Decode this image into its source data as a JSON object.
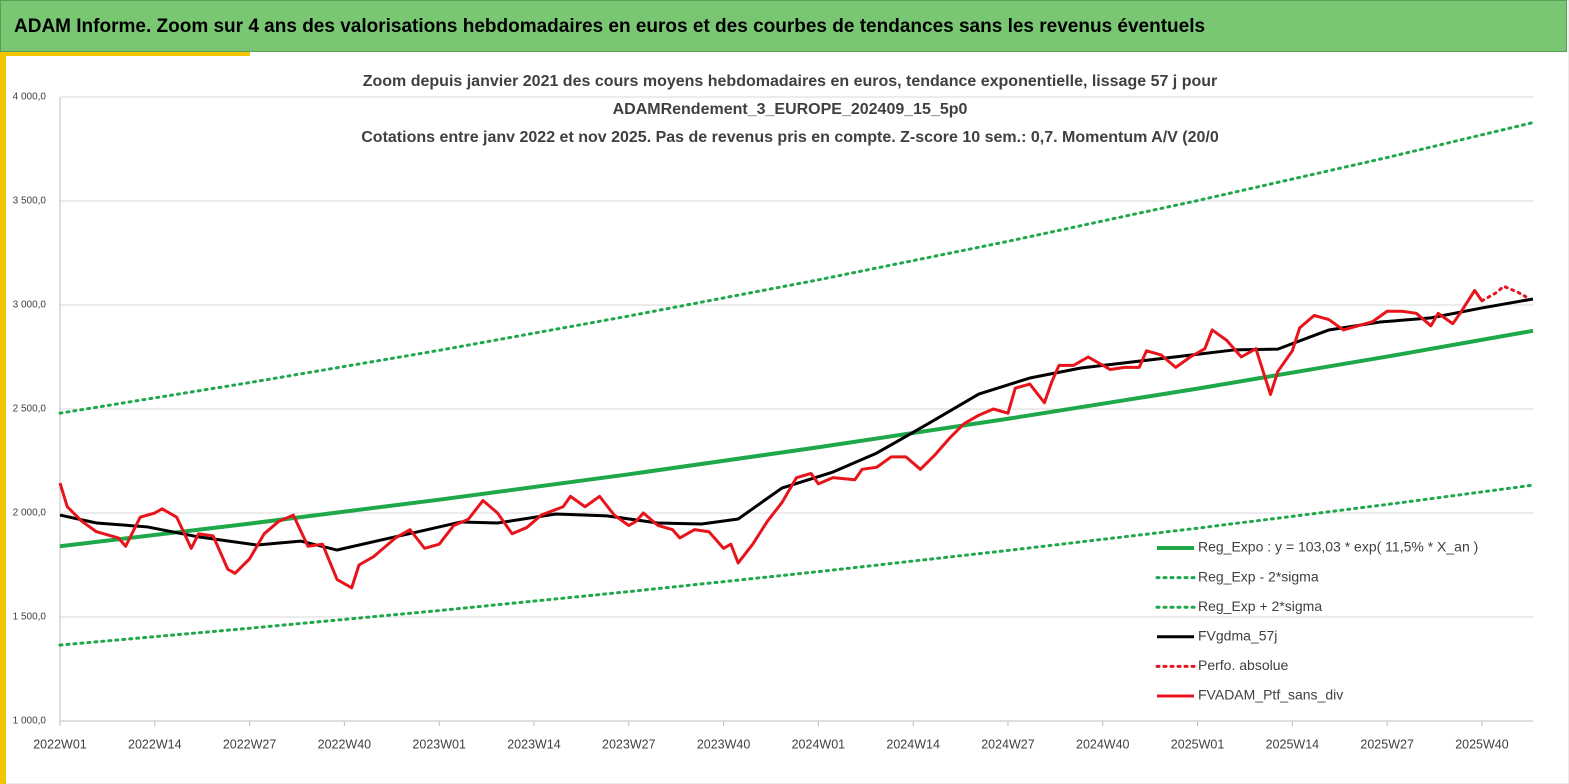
{
  "header": {
    "title": "ADAM Informe. Zoom sur 4 ans des valorisations hebdomadaires en euros et des courbes de tendances sans les revenus éventuels"
  },
  "chart_data": {
    "type": "line",
    "title": [
      "Zoom depuis janvier 2021 des cours moyens hebdomadaires  en euros, tendance exponentielle, lissage 57 j pour",
      "ADAMRendement_3_EUROPE_202409_15_5p0",
      "Cotations  entre janv 2022 et nov 2025. Pas de revenus pris en compte. Z-score 10 sem.: 0,7. Momentum A/V (20/0"
    ],
    "xlim": [
      0,
      202
    ],
    "xticks": [
      {
        "value": 0,
        "label": "2022W01"
      },
      {
        "value": 13,
        "label": "2022W14"
      },
      {
        "value": 26,
        "label": "2022W27"
      },
      {
        "value": 39,
        "label": "2022W40"
      },
      {
        "value": 52,
        "label": "2023W01"
      },
      {
        "value": 65,
        "label": "2023W14"
      },
      {
        "value": 78,
        "label": "2023W27"
      },
      {
        "value": 91,
        "label": "2023W40"
      },
      {
        "value": 104,
        "label": "2024W01"
      },
      {
        "value": 117,
        "label": "2024W14"
      },
      {
        "value": 130,
        "label": "2024W27"
      },
      {
        "value": 143,
        "label": "2024W40"
      },
      {
        "value": 156,
        "label": "2025W01"
      },
      {
        "value": 169,
        "label": "2025W14"
      },
      {
        "value": 182,
        "label": "2025W27"
      },
      {
        "value": 195,
        "label": "2025W40"
      }
    ],
    "ylim": [
      1000,
      4000
    ],
    "yticks": [
      {
        "value": 1000,
        "label": "1 000,0"
      },
      {
        "value": 1500,
        "label": "1 500,0"
      },
      {
        "value": 2000,
        "label": "2 000,0"
      },
      {
        "value": 2500,
        "label": "2 500,0"
      },
      {
        "value": 3000,
        "label": "3 000,0"
      },
      {
        "value": 3500,
        "label": "3 500,0"
      },
      {
        "value": 4000,
        "label": "4 000,0"
      }
    ],
    "grid": true,
    "legend": "lower right",
    "series": [
      {
        "name": "Reg_Expo : y = 103,03 * exp( 11,5% *  X_an )",
        "color": "#1ea84a",
        "style": "solid",
        "width": 4,
        "x": [
          0,
          26,
          52,
          78,
          104,
          130,
          156,
          182,
          202
        ],
        "values": [
          1840,
          1949,
          2064,
          2186,
          2316,
          2453,
          2598,
          2752,
          2876
        ]
      },
      {
        "name": "Reg_Exp - 2*sigma",
        "color": "#1ea84a",
        "style": "dotted",
        "width": 3,
        "x": [
          0,
          26,
          52,
          78,
          104,
          130,
          156,
          182,
          202
        ],
        "values": [
          1365,
          1446,
          1531,
          1622,
          1718,
          1820,
          1927,
          2041,
          2134
        ]
      },
      {
        "name": "Reg_Exp + 2*sigma",
        "color": "#1ea84a",
        "style": "dotted",
        "width": 3,
        "x": [
          0,
          26,
          52,
          78,
          104,
          130,
          156,
          182,
          202
        ],
        "values": [
          2480,
          2627,
          2782,
          2947,
          3121,
          3306,
          3502,
          3709,
          3877
        ]
      },
      {
        "name": "FVgdma_57j",
        "color": "#000000",
        "style": "solid",
        "width": 3,
        "x": [
          0,
          5,
          12,
          19,
          27,
          33,
          38,
          44,
          49,
          55,
          60,
          68,
          75,
          82,
          88,
          93,
          99,
          106,
          112,
          119,
          126,
          133,
          140,
          147,
          154,
          161,
          167,
          174,
          181,
          188,
          195,
          202
        ],
        "values": [
          1990,
          1952,
          1933,
          1885,
          1846,
          1865,
          1822,
          1870,
          1909,
          1957,
          1952,
          1995,
          1986,
          1952,
          1947,
          1971,
          2120,
          2197,
          2288,
          2428,
          2572,
          2649,
          2697,
          2726,
          2755,
          2784,
          2788,
          2880,
          2918,
          2938,
          2986,
          3029
        ]
      },
      {
        "name": "Perfo. absolue",
        "color": "#e8141b",
        "style": "dotted",
        "width": 3,
        "x": [
          195,
          197,
          198,
          200,
          201
        ],
        "values": [
          3020,
          3060,
          3090,
          3060,
          3040
        ]
      },
      {
        "name": "FVADAM_Ptf_sans_div",
        "color": "#e8141b",
        "style": "solid",
        "width": 3,
        "x": [
          0,
          1,
          3,
          5,
          8,
          9,
          11,
          13,
          14,
          16,
          18,
          19,
          21,
          23,
          24,
          26,
          28,
          30,
          32,
          34,
          36,
          38,
          40,
          41,
          43,
          46,
          48,
          50,
          52,
          54,
          56,
          58,
          60,
          62,
          64,
          66,
          69,
          70,
          72,
          74,
          76,
          78,
          79,
          80,
          82,
          84,
          85,
          87,
          89,
          91,
          92,
          93,
          95,
          97,
          99,
          101,
          103,
          104,
          106,
          109,
          110,
          112,
          114,
          116,
          118,
          120,
          122,
          124,
          126,
          128,
          130,
          131,
          133,
          135,
          136,
          137,
          139,
          141,
          144,
          146,
          148,
          149,
          151,
          153,
          155,
          157,
          158,
          160,
          162,
          164,
          166,
          167,
          169,
          170,
          172,
          174,
          176,
          178,
          180,
          182,
          184,
          186,
          188,
          189,
          191,
          192,
          194,
          195
        ],
        "values": [
          2144,
          2030,
          1960,
          1910,
          1880,
          1840,
          1980,
          2000,
          2020,
          1980,
          1830,
          1900,
          1890,
          1730,
          1710,
          1780,
          1900,
          1960,
          1990,
          1840,
          1850,
          1680,
          1640,
          1750,
          1790,
          1880,
          1920,
          1830,
          1850,
          1940,
          1970,
          2060,
          2000,
          1900,
          1930,
          1990,
          2030,
          2080,
          2030,
          2080,
          1990,
          1940,
          1960,
          2000,
          1940,
          1920,
          1880,
          1920,
          1910,
          1830,
          1850,
          1760,
          1850,
          1960,
          2050,
          2170,
          2190,
          2140,
          2170,
          2160,
          2210,
          2220,
          2270,
          2270,
          2210,
          2280,
          2360,
          2430,
          2470,
          2500,
          2480,
          2600,
          2620,
          2530,
          2630,
          2710,
          2710,
          2750,
          2690,
          2700,
          2700,
          2780,
          2760,
          2700,
          2750,
          2790,
          2880,
          2830,
          2750,
          2790,
          2570,
          2680,
          2780,
          2890,
          2950,
          2930,
          2880,
          2900,
          2920,
          2970,
          2970,
          2960,
          2900,
          2960,
          2910,
          2960,
          3070,
          3020
        ]
      }
    ]
  }
}
